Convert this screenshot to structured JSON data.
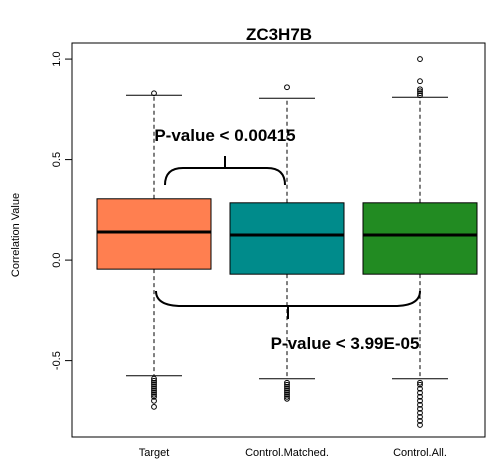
{
  "chart_data": {
    "type": "box",
    "title": "ZC3H7B",
    "ylabel": "Correlation Value",
    "xlabel": "",
    "ylim": [
      -0.88,
      1.08
    ],
    "yticks": [
      1.0,
      0.5,
      0.0,
      -0.5
    ],
    "ytick_labels": [
      "1.0",
      "0.5",
      "0.0",
      "-0.5"
    ],
    "categories": [
      "Target",
      "Control.Matched.",
      "Control.All."
    ],
    "boxes": [
      {
        "name": "Target",
        "color": "#FF7F50",
        "q1": -0.045,
        "median": 0.14,
        "q3": 0.305,
        "whisker_low": -0.575,
        "whisker_high": 0.82,
        "outliers": [
          0.83,
          -0.59,
          -0.6,
          -0.61,
          -0.62,
          -0.63,
          -0.64,
          -0.65,
          -0.66,
          -0.67,
          -0.68,
          -0.7,
          -0.73
        ]
      },
      {
        "name": "Control.Matched.",
        "color": "#008B8B",
        "q1": -0.07,
        "median": 0.125,
        "q3": 0.285,
        "whisker_low": -0.59,
        "whisker_high": 0.805,
        "outliers": [
          0.86,
          -0.61,
          -0.62,
          -0.63,
          -0.64,
          -0.65,
          -0.66,
          -0.67,
          -0.68,
          -0.69
        ]
      },
      {
        "name": "Control.All.",
        "color": "#228B22",
        "q1": -0.07,
        "median": 0.125,
        "q3": 0.285,
        "whisker_low": -0.59,
        "whisker_high": 0.81,
        "outliers": [
          1.0,
          0.89,
          0.85,
          0.84,
          0.83,
          0.82,
          -0.61,
          -0.62,
          -0.64,
          -0.66,
          -0.68,
          -0.7,
          -0.72,
          -0.74,
          -0.76,
          -0.78,
          -0.8,
          -0.82
        ]
      }
    ],
    "annotations": [
      {
        "text": "P-value < 0.00415",
        "compares": [
          "Target",
          "Control.Matched."
        ],
        "side": "above"
      },
      {
        "text": "P-value < 3.99E-05",
        "compares": [
          "Target",
          "Control.All."
        ],
        "side": "below"
      }
    ],
    "grid": false,
    "legend": "none"
  }
}
